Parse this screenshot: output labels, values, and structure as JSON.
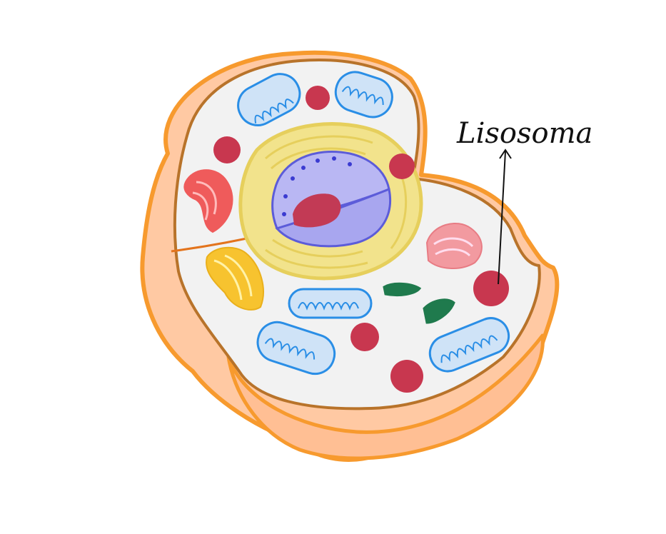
{
  "diagram": {
    "subject": "animal-cell-cutaway",
    "label": {
      "text": "Lisosoma",
      "target": "lysosome"
    },
    "colors": {
      "membrane_outer": "#f79a2e",
      "membrane_fill": "#ffc9a3",
      "membrane_edge": "#d9791b",
      "cytoplasm": "#f2f2f2",
      "cut_line": "#e3741d",
      "golgi": "#f2e38c",
      "golgi_edge": "#e6cf5c",
      "nucleus_outer": "#b9b7f3",
      "nucleus_inner": "#a8a6ef",
      "nucleus_edge": "#5c5cd9",
      "nucleolus": "#c23a55",
      "lysosome": "#c8374f",
      "mitochondria_fill": "#cfe3f7",
      "mitochondria_edge": "#2a8ee6",
      "er_rough": "#ef5b5b",
      "er_smooth": "#f7c32f",
      "er_pink": "#f29aa0",
      "chloro_green": "#1f7a4d",
      "label_ink": "#111111"
    }
  }
}
